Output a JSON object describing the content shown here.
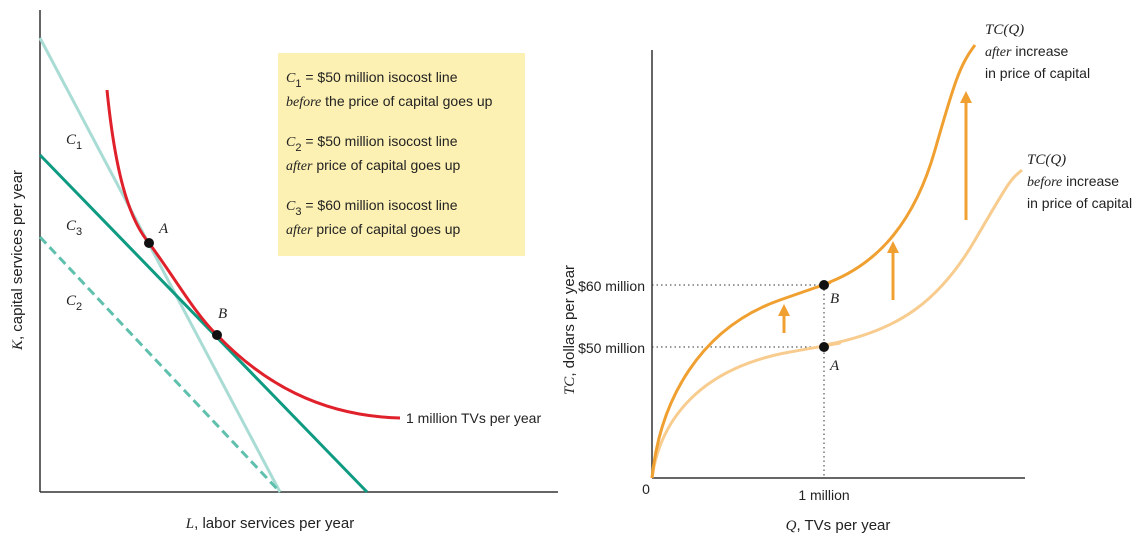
{
  "left_panel": {
    "y_axis_label": {
      "var": "K",
      "text": ", capital services per year"
    },
    "x_axis_label": {
      "var": "L",
      "text": ", labor services per year"
    },
    "lines": [
      {
        "symbol": "C",
        "subscript": "1"
      },
      {
        "symbol": "C",
        "subscript": "3"
      },
      {
        "symbol": "C",
        "subscript": "2"
      }
    ],
    "points": [
      "A",
      "B"
    ],
    "isoquant_label": "1 million TVs per year",
    "legend": [
      {
        "symbol": "C",
        "subscript": "1",
        "text": " = $50 million isocost line",
        "note": "before",
        "rest": " the price of capital goes up"
      },
      {
        "symbol": "C",
        "subscript": "2",
        "text": " = $50 million isocost line",
        "note": "after",
        "rest": " price of capital goes up"
      },
      {
        "symbol": "C",
        "subscript": "3",
        "text": " = $60 million isocost line",
        "note": "after",
        "rest": " price of capital goes up"
      }
    ]
  },
  "right_panel": {
    "y_axis_label": {
      "var": "TC",
      "text": ", dollars per year"
    },
    "x_axis_label": {
      "var": "Q",
      "text": ", TVs per year"
    },
    "y_ticks": [
      "$60 million",
      "$50 million"
    ],
    "origin": "0",
    "x_tick": "1 million",
    "points": [
      "B",
      "A"
    ],
    "curves": [
      {
        "name": "TC(Q)",
        "note": "after",
        "text": " increase",
        "line3": "in price of capital"
      },
      {
        "name": "TC(Q)",
        "note": "before",
        "text": " increase",
        "line3": "in price of capital"
      }
    ]
  }
}
